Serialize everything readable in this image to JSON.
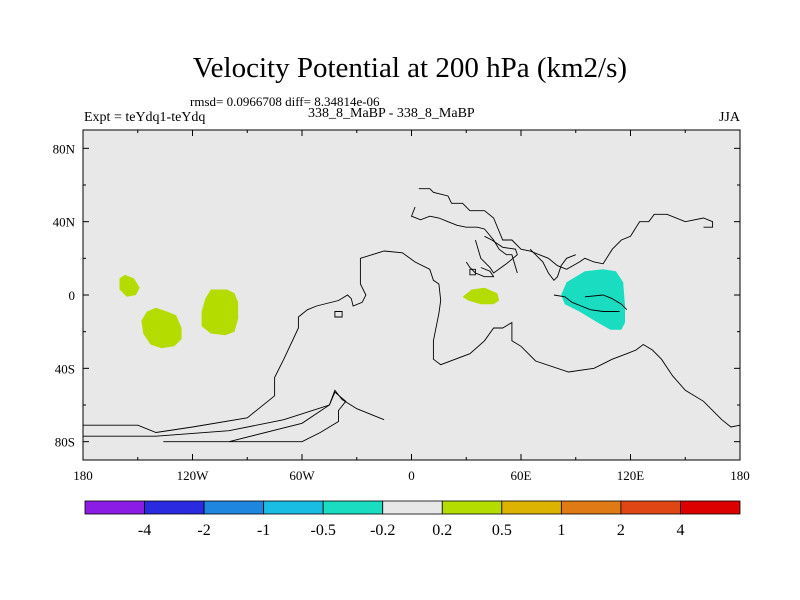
{
  "chart_data": {
    "type": "contour-map",
    "title": "Velocity Potential at 200 hPa (km2/s)",
    "stats_line": "rmsd= 0.0966708 diff= 8.34814e-06",
    "left_label": "Expt = teYdq1-teYdq",
    "center_label": "338_8_MaBP - 338_8_MaBP",
    "right_label": "JJA",
    "lon_range": [
      -180,
      180
    ],
    "lat_range": [
      -90,
      90
    ],
    "x_ticks": [
      {
        "value": -180,
        "label": "180"
      },
      {
        "value": -120,
        "label": "120W"
      },
      {
        "value": -60,
        "label": "60W"
      },
      {
        "value": 0,
        "label": "0"
      },
      {
        "value": 60,
        "label": "60E"
      },
      {
        "value": 120,
        "label": "120E"
      },
      {
        "value": 180,
        "label": "180"
      }
    ],
    "y_ticks": [
      {
        "value": 80,
        "label": "80N"
      },
      {
        "value": 40,
        "label": "40N"
      },
      {
        "value": 0,
        "label": "0"
      },
      {
        "value": -40,
        "label": "40S"
      },
      {
        "value": -80,
        "label": "80S"
      }
    ],
    "background_color": "#e8e8e8",
    "colorbar": {
      "colors": [
        "#8a1ce6",
        "#2a2ae0",
        "#1f86e0",
        "#19bce3",
        "#19dcc0",
        "#e8e8e8",
        "#b4dc00",
        "#dcb400",
        "#e07a14",
        "#e04614",
        "#dc0000"
      ],
      "labels": [
        "-4",
        "-2",
        "-1",
        "-0.5",
        "-0.2",
        "0.2",
        "0.5",
        "1",
        "2",
        "4"
      ]
    },
    "anomaly_regions": [
      {
        "name": "central-pacific-small",
        "class": "0.2 to 0.5",
        "color": "#b4dc00",
        "points": [
          [
            -157,
            11
          ],
          [
            -152,
            9
          ],
          [
            -149,
            4
          ],
          [
            -151,
            0
          ],
          [
            -156,
            -1
          ],
          [
            -160,
            3
          ],
          [
            -160,
            9
          ]
        ]
      },
      {
        "name": "south-pacific-west",
        "class": "0.2 to 0.5",
        "color": "#b4dc00",
        "points": [
          [
            -140,
            -7
          ],
          [
            -134,
            -9
          ],
          [
            -129,
            -11
          ],
          [
            -126,
            -18
          ],
          [
            -126,
            -24
          ],
          [
            -130,
            -28
          ],
          [
            -137,
            -29
          ],
          [
            -143,
            -27
          ],
          [
            -147,
            -21
          ],
          [
            -148,
            -14
          ],
          [
            -145,
            -9
          ]
        ]
      },
      {
        "name": "south-pacific-east",
        "class": "0.2 to 0.5",
        "color": "#b4dc00",
        "points": [
          [
            -110,
            3
          ],
          [
            -101,
            3
          ],
          [
            -97,
            1
          ],
          [
            -95,
            -4
          ],
          [
            -95,
            -13
          ],
          [
            -97,
            -20
          ],
          [
            -102,
            -22
          ],
          [
            -110,
            -21
          ],
          [
            -115,
            -17
          ],
          [
            -115,
            -9
          ],
          [
            -113,
            -2
          ]
        ]
      },
      {
        "name": "east-africa",
        "class": "0.2 to 0.5",
        "color": "#b4dc00",
        "points": [
          [
            28,
            -1
          ],
          [
            33,
            3
          ],
          [
            40,
            4
          ],
          [
            47,
            1
          ],
          [
            48,
            -3
          ],
          [
            45,
            -5
          ],
          [
            38,
            -5
          ],
          [
            31,
            -3
          ]
        ]
      },
      {
        "name": "indian-ocean-negative",
        "class": "-0.5 to -0.2",
        "color": "#19dcc0",
        "points": [
          [
            85,
            7
          ],
          [
            95,
            13
          ],
          [
            105,
            14
          ],
          [
            112,
            13
          ],
          [
            116,
            7
          ],
          [
            117,
            -6
          ],
          [
            117,
            -15
          ],
          [
            115,
            -19
          ],
          [
            109,
            -19
          ],
          [
            102,
            -15
          ],
          [
            97,
            -12
          ],
          [
            92,
            -9
          ],
          [
            84,
            -5
          ],
          [
            82,
            0
          ]
        ]
      }
    ],
    "coastlines": [
      {
        "name": "south-america-and-antarctica",
        "points": [
          [
            -180,
            -71
          ],
          [
            -150,
            -71
          ],
          [
            -140,
            -75
          ],
          [
            -120,
            -72
          ],
          [
            -90,
            -67
          ],
          [
            -75,
            -55
          ],
          [
            -75,
            -45
          ],
          [
            -70,
            -35
          ],
          [
            -62,
            -18
          ],
          [
            -62,
            -12
          ],
          [
            -57,
            -8
          ],
          [
            -52,
            -6
          ],
          [
            -40,
            -3
          ],
          [
            -35,
            0
          ],
          [
            -33,
            -2
          ],
          [
            -32,
            -6
          ],
          [
            -27,
            -4
          ],
          [
            -25,
            0
          ],
          [
            -28,
            6
          ],
          [
            -28,
            20
          ],
          [
            -15,
            24
          ],
          [
            -5,
            23
          ],
          [
            2,
            18
          ],
          [
            10,
            14
          ],
          [
            12,
            8
          ],
          [
            15,
            6
          ],
          [
            16,
            -3
          ],
          [
            15,
            -10
          ],
          [
            12,
            -25
          ],
          [
            12,
            -35
          ],
          [
            16,
            -38
          ],
          [
            32,
            -32
          ],
          [
            40,
            -25
          ],
          [
            45,
            -18
          ],
          [
            50,
            -18
          ],
          [
            55,
            -15
          ],
          [
            55,
            -25
          ],
          [
            60,
            -28
          ],
          [
            68,
            -36
          ],
          [
            86,
            -42
          ],
          [
            100,
            -40
          ],
          [
            110,
            -35
          ],
          [
            118,
            -32
          ],
          [
            123,
            -30
          ],
          [
            127,
            -27
          ],
          [
            132,
            -30
          ],
          [
            137,
            -35
          ],
          [
            143,
            -44
          ],
          [
            150,
            -52
          ],
          [
            160,
            -58
          ],
          [
            170,
            -68
          ],
          [
            175,
            -72
          ],
          [
            180,
            -71
          ]
        ]
      },
      {
        "name": "south-american-shelf",
        "points": [
          [
            -180,
            -77
          ],
          [
            -140,
            -77
          ],
          [
            -100,
            -74
          ],
          [
            -70,
            -68
          ],
          [
            -45,
            -60
          ],
          [
            -42,
            -52
          ],
          [
            -38,
            -57
          ],
          [
            -30,
            -62
          ],
          [
            -15,
            -68
          ]
        ]
      },
      {
        "name": "antarctic-peninsula",
        "points": [
          [
            -136,
            -80
          ],
          [
            -60,
            -80
          ],
          [
            -50,
            -75
          ],
          [
            -40,
            -69
          ],
          [
            -40,
            -63
          ],
          [
            -36,
            -58
          ],
          [
            -42,
            -53
          ],
          [
            -45,
            -60
          ],
          [
            -60,
            -70
          ],
          [
            -100,
            -80
          ]
        ]
      },
      {
        "name": "eurasia",
        "points": [
          [
            4,
            58
          ],
          [
            10,
            58
          ],
          [
            12,
            56
          ],
          [
            20,
            54
          ],
          [
            22,
            50
          ],
          [
            28,
            50
          ],
          [
            32,
            46
          ],
          [
            40,
            46
          ],
          [
            45,
            42
          ],
          [
            50,
            30
          ],
          [
            55,
            30
          ],
          [
            60,
            25
          ],
          [
            65,
            24
          ],
          [
            75,
            20
          ],
          [
            80,
            16
          ],
          [
            85,
            14
          ],
          [
            92,
            18
          ],
          [
            95,
            20
          ],
          [
            100,
            18
          ],
          [
            105,
            17
          ],
          [
            110,
            25
          ],
          [
            115,
            30
          ],
          [
            120,
            32
          ],
          [
            125,
            40
          ],
          [
            130,
            40
          ],
          [
            133,
            44
          ],
          [
            140,
            44
          ],
          [
            150,
            40
          ],
          [
            160,
            42
          ],
          [
            165,
            40
          ],
          [
            165,
            37
          ],
          [
            160,
            37
          ]
        ]
      },
      {
        "name": "mediterranean",
        "points": [
          [
            2,
            48
          ],
          [
            0,
            43
          ],
          [
            5,
            41
          ],
          [
            10,
            43
          ],
          [
            15,
            42
          ],
          [
            20,
            40
          ],
          [
            25,
            38
          ],
          [
            30,
            37
          ],
          [
            36,
            37
          ],
          [
            40,
            36
          ],
          [
            45,
            30
          ],
          [
            48,
            25
          ],
          [
            52,
            22
          ],
          [
            55,
            22
          ],
          [
            58,
            12
          ]
        ]
      },
      {
        "name": "arabian-peninsula",
        "points": [
          [
            35,
            30
          ],
          [
            38,
            20
          ],
          [
            43,
            15
          ],
          [
            45,
            12
          ],
          [
            52,
            17
          ],
          [
            58,
            22
          ],
          [
            57,
            25
          ],
          [
            50,
            26
          ],
          [
            44,
            30
          ],
          [
            40,
            32
          ]
        ]
      },
      {
        "name": "sea-island-north",
        "points": [
          [
            30,
            18
          ],
          [
            32,
            15
          ],
          [
            35,
            12
          ],
          [
            40,
            10
          ],
          [
            45,
            10
          ],
          [
            43,
            13
          ],
          [
            38,
            15
          ]
        ]
      },
      {
        "name": "indian-subcontinent",
        "points": [
          [
            65,
            25
          ],
          [
            68,
            22
          ],
          [
            72,
            18
          ],
          [
            75,
            12
          ],
          [
            78,
            8
          ],
          [
            80,
            10
          ],
          [
            82,
            16
          ],
          [
            85,
            20
          ],
          [
            90,
            22
          ]
        ]
      },
      {
        "name": "southeast-asia-island",
        "points": [
          [
            78,
            0
          ],
          [
            84,
            -1
          ],
          [
            88,
            -4
          ],
          [
            93,
            -6
          ],
          [
            98,
            -8
          ],
          [
            105,
            -9
          ],
          [
            110,
            -9
          ],
          [
            114,
            -9
          ]
        ]
      },
      {
        "name": "west-pacific-land",
        "points": [
          [
            95,
            -1
          ],
          [
            105,
            0
          ],
          [
            110,
            -2
          ],
          [
            115,
            -5
          ],
          [
            118,
            -8
          ]
        ]
      }
    ],
    "islands": [
      {
        "name": "south-atlantic-island",
        "points": [
          [
            -42,
            -9
          ],
          [
            -38,
            -9
          ],
          [
            -38,
            -12
          ],
          [
            -42,
            -12
          ]
        ]
      },
      {
        "name": "indian-ocean-island",
        "points": [
          [
            32,
            14
          ],
          [
            35,
            14
          ],
          [
            35,
            11
          ],
          [
            32,
            11
          ]
        ]
      }
    ]
  }
}
